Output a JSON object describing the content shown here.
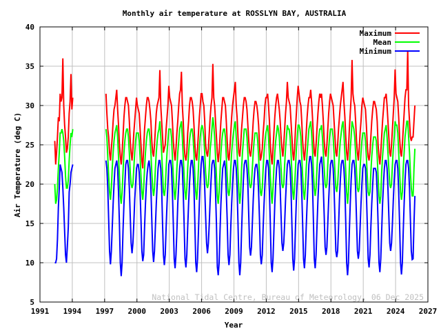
{
  "chart_data": {
    "type": "line",
    "title": "Monthly air temperature at ROSSLYN BAY, AUSTRALIA",
    "xlabel": "Year",
    "ylabel": "Air Temperature (deg C)",
    "xlim": [
      1991,
      2027
    ],
    "ylim": [
      5,
      40
    ],
    "xticks": [
      "1991",
      "1994",
      "1997",
      "2000",
      "2003",
      "2006",
      "2009",
      "2012",
      "2015",
      "2018",
      "2021",
      "2024",
      "2027"
    ],
    "yticks": [
      "5",
      "10",
      "15",
      "20",
      "25",
      "30",
      "35",
      "40"
    ],
    "grid": true,
    "legend_position": "top-right",
    "credit": "National Tidal Centre, Bureau of Meteorology, 06 Dec 2025",
    "series": [
      {
        "name": "Maximum",
        "color": "#ff0000",
        "key": "max"
      },
      {
        "name": "Mean",
        "color": "#00ff00",
        "key": "mean"
      },
      {
        "name": "Minimum",
        "color": "#0000ff",
        "key": "min"
      }
    ],
    "segments": [
      {
        "start": "1992-05",
        "max": [
          25.5,
          22.5,
          24,
          26,
          28.5,
          28,
          31.5,
          30.5,
          31,
          36,
          30,
          27.5,
          26,
          24,
          24.5,
          26,
          29,
          30.5,
          34,
          29.5,
          31
        ],
        "mean": [
          20,
          17.5,
          18,
          19.5,
          22,
          24,
          26.5,
          26.5,
          27,
          26.5,
          25.5,
          23.5,
          21,
          19.5,
          19.5,
          20.5,
          23,
          25,
          26.5,
          26,
          27
        ],
        "min": [
          10,
          10,
          10.5,
          13,
          17,
          19.5,
          22.5,
          22,
          21.5,
          19.5,
          17,
          14,
          11,
          10,
          12,
          14.5,
          19,
          20,
          21.5,
          22,
          22.5
        ]
      },
      {
        "start": "1997-02",
        "max": [
          31.5,
          29,
          27,
          26,
          24,
          23,
          24.5,
          26,
          28,
          29.5,
          30,
          31,
          32,
          29.5,
          27.5,
          25,
          23.5,
          22.5,
          24,
          26,
          28.5,
          30,
          31,
          31,
          30.5,
          30,
          28,
          25.5,
          24,
          23,
          24.5,
          26.5,
          28,
          29.5,
          31,
          30,
          29.5,
          29,
          27,
          25,
          23,
          22,
          24.5,
          27,
          28.5,
          30,
          31,
          31,
          30.5,
          29.5,
          28,
          25.5,
          24,
          23.5,
          25,
          27,
          29,
          30,
          30.5,
          31,
          34.5,
          30,
          28,
          26,
          24,
          24.5,
          25,
          27,
          28.5,
          30,
          32.5,
          31,
          30.5,
          30,
          28,
          25.5,
          24,
          23,
          24.5,
          26.5,
          28,
          30,
          31.5,
          32,
          34.3,
          30,
          28,
          25,
          23.5,
          23,
          24,
          26.5,
          28,
          30,
          31,
          31,
          30.5,
          29.5,
          27.5,
          25,
          23.5,
          23,
          24.5,
          26.5,
          28.5,
          30,
          31.5,
          31.5,
          30.5,
          30,
          28,
          25,
          24,
          23.5,
          24.5,
          26.5,
          28.5,
          30,
          31,
          35.3,
          31,
          30,
          28,
          26,
          24,
          22.8,
          24,
          26,
          28,
          29.5,
          31,
          31,
          30.5,
          30,
          28,
          25.5,
          23.5,
          23,
          24.5,
          26.5,
          28.5,
          30,
          31,
          32,
          33,
          30,
          28.5,
          26,
          24,
          23.5,
          25,
          27,
          28.5,
          30,
          31,
          31,
          30.5,
          29.5,
          27.5,
          25.5,
          24,
          23.5,
          24.5,
          26,
          28,
          29.5,
          30.5,
          30.5,
          30,
          29,
          27.5,
          25,
          23,
          23.5,
          24.5,
          26.5,
          28,
          30,
          31,
          31,
          31.5,
          30,
          28,
          25,
          23.5,
          22.5,
          24.5,
          26.5,
          28.5,
          30,
          31,
          31.5,
          30.5,
          29.5,
          28,
          26,
          24.5,
          23.5,
          25,
          27,
          29,
          30.5,
          33,
          31,
          30.5,
          30,
          28,
          26,
          24,
          23,
          24.5,
          27,
          29,
          31,
          32.5,
          31.5,
          30.5,
          30,
          28,
          25.5,
          24,
          23,
          24.5,
          26.5,
          28.5,
          30,
          31,
          31,
          32,
          30.5,
          28.5,
          26,
          24,
          23.5,
          25,
          27,
          29,
          30.5,
          31.5,
          31,
          31.5,
          30,
          28,
          25.5,
          24,
          23.5,
          25,
          27,
          29,
          30.5,
          31.5,
          31,
          30.5,
          30,
          28,
          26,
          24,
          23.5,
          25,
          27,
          28.5,
          30,
          31,
          32,
          33,
          30.5,
          28.5,
          26,
          24,
          23,
          24.5,
          27,
          29,
          31,
          35.8,
          31.5,
          30.5,
          30,
          28,
          25.5,
          24,
          23,
          24.5,
          26.5,
          28,
          30,
          31,
          30.5,
          30,
          29.5,
          27.5,
          25,
          23.5,
          23,
          24,
          26,
          28,
          29.5,
          30.5,
          30.5,
          30,
          29.5,
          28,
          25,
          23.5,
          22.5,
          24,
          26,
          28,
          29.5,
          31,
          31,
          31.5,
          30,
          28,
          26,
          24,
          23.5,
          25,
          27,
          29,
          31,
          34.6,
          31.5,
          31,
          30.5,
          28.5,
          26,
          24,
          23.5,
          25,
          27,
          29,
          31,
          32,
          32,
          37,
          30,
          28,
          26,
          25.5,
          26,
          26,
          28,
          30
        ],
        "mean": [
          27,
          26,
          23.5,
          21,
          19,
          18,
          19.5,
          22,
          24,
          25.5,
          26.5,
          27,
          27.5,
          26,
          23.5,
          21,
          18.5,
          17.5,
          19,
          21.5,
          24,
          25.5,
          26.5,
          27,
          27,
          26,
          24,
          21.5,
          20,
          19.5,
          20,
          22,
          24,
          25.5,
          26.5,
          26.5,
          26.5,
          25.5,
          23.5,
          21,
          19,
          18,
          19.5,
          22,
          24,
          25.5,
          26.5,
          27,
          27,
          26,
          24,
          21.5,
          19.5,
          18.5,
          19.5,
          22,
          24,
          25.5,
          26.5,
          27,
          28,
          26,
          24,
          21.5,
          19,
          18.5,
          19.5,
          22,
          24,
          25.5,
          27,
          27,
          27,
          26,
          23.5,
          21,
          19,
          18,
          19.5,
          22,
          24,
          25.5,
          27,
          27.5,
          28,
          26,
          23.5,
          21,
          19,
          18,
          19.5,
          22,
          24,
          25.5,
          26.5,
          27,
          27,
          26,
          24,
          21,
          19,
          18,
          19.5,
          22,
          24.5,
          26,
          27,
          27.5,
          27,
          26,
          24,
          21.5,
          20,
          19.5,
          20,
          22,
          24.5,
          25.5,
          27,
          28.5,
          27.5,
          26,
          23.5,
          21,
          18.5,
          17.5,
          19,
          21.5,
          24,
          25.5,
          26.5,
          27,
          27,
          26,
          23.5,
          21,
          19,
          18.5,
          19.5,
          22,
          24,
          25.5,
          26.5,
          27.5,
          28,
          26,
          24,
          21.5,
          19,
          17.5,
          19,
          22,
          24,
          25.5,
          27,
          27,
          27,
          26,
          24,
          21.5,
          20,
          19.5,
          20,
          22,
          24,
          25.5,
          26.5,
          26.5,
          26.5,
          25.5,
          23.5,
          21,
          19,
          18.5,
          19.5,
          22,
          24,
          25.5,
          26.5,
          27,
          27.5,
          26,
          23.5,
          21,
          19,
          17.5,
          19.5,
          22,
          24,
          25.5,
          26.5,
          27.5,
          27,
          26,
          24,
          22,
          20,
          19.5,
          20,
          22.5,
          24.5,
          26,
          27.5,
          27,
          27,
          26,
          24,
          21.5,
          19,
          18,
          19.5,
          22,
          24.5,
          26,
          27.5,
          27.5,
          27,
          26,
          23.5,
          21,
          19,
          18,
          19.5,
          22,
          24,
          25.5,
          27,
          27.5,
          28,
          26.5,
          24.5,
          21.5,
          19.5,
          18.5,
          19.5,
          22,
          24.5,
          26,
          27,
          27,
          27.5,
          26,
          24,
          22,
          20,
          19.5,
          20,
          22.5,
          24.5,
          26,
          27,
          27,
          27,
          26,
          24,
          21.5,
          19.5,
          19,
          20,
          22,
          24,
          25.5,
          26.5,
          27.5,
          28,
          26.5,
          24,
          21.5,
          19,
          17.5,
          19,
          22,
          24.5,
          26,
          28,
          27.5,
          27,
          26,
          24,
          21.5,
          19.5,
          19,
          19.5,
          22,
          24,
          25.5,
          26.5,
          26.5,
          26.5,
          25.5,
          23.5,
          21,
          19,
          18.5,
          19,
          21.5,
          23.5,
          25,
          26,
          26,
          26,
          25.5,
          23.5,
          21,
          18.5,
          17.5,
          18.5,
          21.5,
          23.5,
          25,
          26.5,
          27,
          27.5,
          26,
          24,
          22,
          20,
          19.5,
          20,
          22.5,
          24.5,
          26,
          28,
          27.5,
          27.5,
          26.5,
          24,
          21.5,
          19,
          18,
          19,
          22,
          24,
          26,
          27,
          28,
          28,
          26,
          24,
          21.5,
          19.5,
          18.5,
          18.5,
          22,
          24.5
        ],
        "min": [
          23,
          22,
          19.5,
          15.5,
          11.5,
          9.8,
          11.5,
          14.5,
          17.5,
          20,
          22,
          22.5,
          23,
          22,
          19,
          15,
          10,
          8.3,
          10,
          14,
          17.5,
          20,
          22.5,
          23,
          23,
          22,
          19.5,
          16,
          12.5,
          11.2,
          12.5,
          15,
          18,
          20,
          22,
          22.5,
          22.5,
          21.5,
          19,
          15.5,
          11.5,
          10.2,
          11,
          14.5,
          17.5,
          20,
          21.5,
          22.5,
          23,
          22,
          19.5,
          15.5,
          11.5,
          10.1,
          11.5,
          14.5,
          17.5,
          20,
          22,
          23,
          23,
          22,
          19.5,
          15,
          11,
          9.7,
          11,
          14.5,
          17.5,
          20,
          22.5,
          23,
          23,
          22,
          19,
          15,
          10.5,
          9.3,
          11,
          14,
          17.5,
          20,
          22,
          23,
          23,
          22,
          19,
          15,
          10.5,
          9.4,
          11,
          14.5,
          17.5,
          20,
          22,
          23,
          23,
          22,
          19.5,
          15,
          10,
          8.8,
          10.5,
          14,
          17.5,
          20.5,
          22.5,
          23.5,
          23.5,
          22,
          19.5,
          16,
          12.5,
          11.2,
          12.5,
          15,
          18,
          20.5,
          22.5,
          23,
          23,
          22,
          19,
          15,
          9.5,
          8.4,
          10,
          14,
          17.5,
          20,
          22,
          22.5,
          23,
          22,
          19,
          15.5,
          11,
          9.7,
          11,
          14.5,
          17.5,
          20,
          22,
          23,
          23,
          22,
          19.5,
          15,
          10,
          8.4,
          10,
          14,
          17.5,
          20.5,
          22.5,
          23,
          23,
          22,
          20,
          16,
          12,
          10.9,
          12,
          15,
          18,
          20.5,
          22,
          22.5,
          22.5,
          21.5,
          19,
          15.5,
          11,
          9.8,
          11,
          14.5,
          17.5,
          20,
          22,
          23,
          23,
          22,
          19,
          15,
          10,
          8.8,
          10.5,
          14,
          17.5,
          20,
          22,
          23,
          23,
          22,
          19.5,
          16,
          12.5,
          11.5,
          12.5,
          15,
          18,
          20.5,
          22.5,
          23,
          23,
          22,
          19.5,
          15,
          10.5,
          9,
          10.5,
          14.5,
          18,
          20.5,
          22.5,
          23,
          23,
          22,
          19,
          15,
          10.5,
          9.3,
          11,
          14.5,
          17.5,
          20,
          22.5,
          23.5,
          23.5,
          22.5,
          20,
          15.5,
          10.5,
          9.3,
          11,
          14.5,
          18,
          20.5,
          22.5,
          23,
          23.5,
          22,
          19.5,
          16,
          12,
          11,
          12,
          15,
          18,
          20.5,
          22.5,
          23,
          23,
          22,
          19.5,
          15.5,
          11.5,
          10.7,
          11.5,
          14.5,
          18,
          20.5,
          22.5,
          23,
          23,
          22,
          19.5,
          15,
          10,
          8.4,
          10,
          14,
          17.5,
          20.5,
          22.5,
          23,
          23,
          22,
          19.5,
          15.5,
          11.5,
          10.5,
          11.5,
          14.5,
          17.5,
          20,
          22,
          22.5,
          22.5,
          22,
          19,
          15,
          10.5,
          9.4,
          11,
          14.5,
          17.5,
          20,
          22,
          22,
          22,
          21.5,
          19,
          15,
          10,
          8.8,
          10.5,
          14,
          17.5,
          20,
          22,
          23,
          23,
          22,
          19.5,
          16,
          12.5,
          11.5,
          12.5,
          15,
          18,
          20.5,
          22.5,
          23,
          23,
          22,
          19,
          15,
          10,
          8.5,
          10,
          14,
          17.5,
          20.5,
          22.5,
          23,
          23,
          22,
          19.5,
          15.5,
          11.5,
          10.4,
          10.5,
          15,
          18.5
        ]
      }
    ]
  }
}
